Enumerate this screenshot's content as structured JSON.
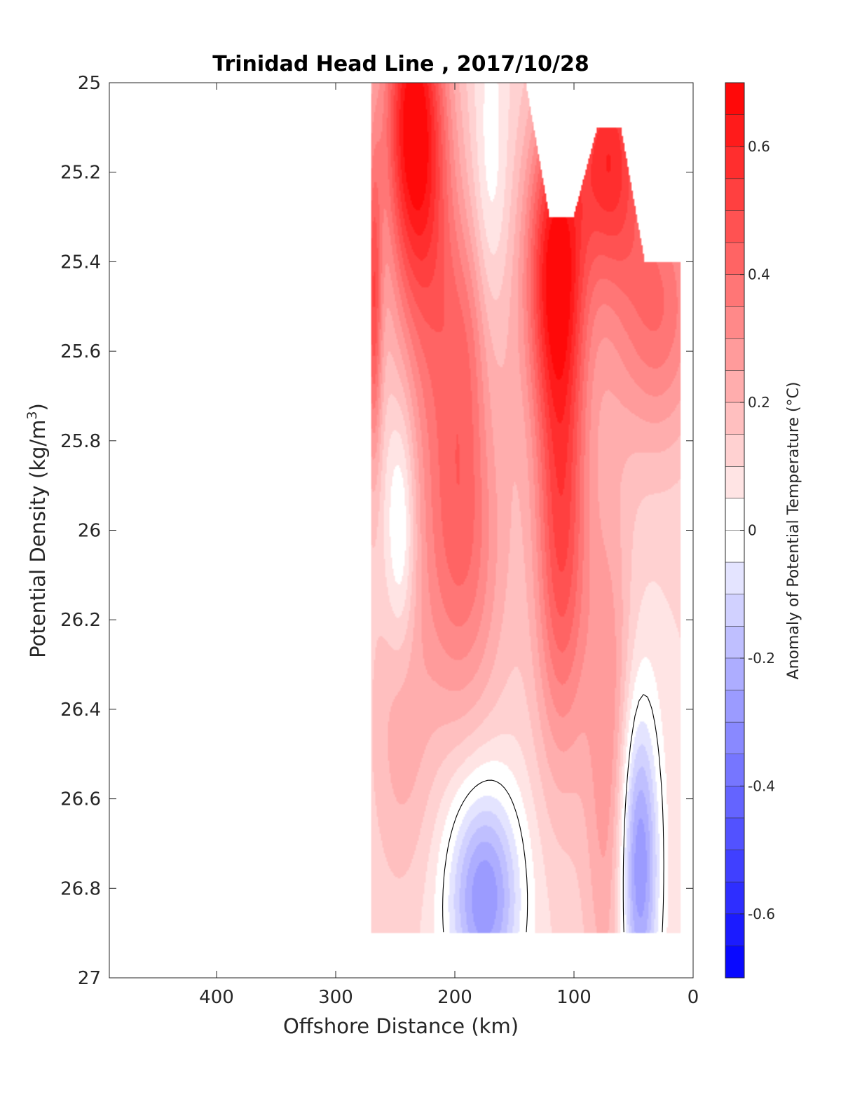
{
  "chart_data": {
    "type": "heatmap",
    "subtype": "filled-contour section",
    "title": "Trinidad Head Line , 2017/10/28",
    "xlabel": "Offshore Distance (km)",
    "ylabel": "Potential Density (kg/m^3)",
    "ylabel_parts": {
      "main": "Potential Density (kg/m",
      "sup": "3",
      "tail": ")"
    },
    "colorbar_label": "Anomaly of Potential Temperature (°C)",
    "x_axis": {
      "reversed": true,
      "min": 0,
      "max": 490,
      "ticks": [
        400,
        300,
        200,
        100,
        0
      ],
      "tick_labels": [
        "400",
        "300",
        "200",
        "100",
        "0"
      ]
    },
    "y_axis": {
      "reversed": true,
      "min": 25,
      "max": 27,
      "ticks": [
        25,
        25.2,
        25.4,
        25.6,
        25.8,
        26,
        26.2,
        26.4,
        26.6,
        26.8,
        27
      ],
      "tick_labels": [
        "25",
        "25.2",
        "25.4",
        "25.6",
        "25.8",
        "26",
        "26.2",
        "26.4",
        "26.6",
        "26.8",
        "27"
      ]
    },
    "colorbar": {
      "min": -0.7,
      "max": 0.7,
      "step": 0.05,
      "ticks": [
        0.6,
        0.4,
        0.2,
        0,
        -0.2,
        -0.4,
        -0.6
      ],
      "tick_labels": [
        "0.6",
        "0.4",
        "0.2",
        "0",
        "-0.2",
        "-0.4",
        "-0.6"
      ],
      "colormap": "blue-white-red",
      "neg_color": "#0000ff",
      "zero_color": "#ffffff",
      "pos_color": "#ff0000"
    },
    "zero_contour": true,
    "grid": false,
    "data_x_km": [
      270,
      260,
      250,
      240,
      230,
      220,
      210,
      200,
      190,
      180,
      170,
      160,
      150,
      140,
      130,
      120,
      110,
      100,
      90,
      80,
      70,
      60,
      50,
      40,
      30,
      20,
      10
    ],
    "data_y_density": [
      25.0,
      25.1,
      25.2,
      25.3,
      25.4,
      25.5,
      25.6,
      25.7,
      25.8,
      25.9,
      26.0,
      26.1,
      26.2,
      26.3,
      26.4,
      26.5,
      26.6,
      26.7,
      26.8,
      26.9
    ],
    "surface_density_limit": [
      {
        "x": 270,
        "y": 25.0
      },
      {
        "x": 140,
        "y": 25.0
      },
      {
        "x": 120,
        "y": 25.3
      },
      {
        "x": 100,
        "y": 25.3
      },
      {
        "x": 80,
        "y": 25.1
      },
      {
        "x": 60,
        "y": 25.1
      },
      {
        "x": 40,
        "y": 25.4
      },
      {
        "x": 10,
        "y": 25.4
      }
    ],
    "bottom_density_limit": 26.9,
    "anomaly_features": [
      {
        "x": 235,
        "y": 25.05,
        "value": 0.58,
        "sx": 18,
        "sy": 0.25
      },
      {
        "x": 268,
        "y": 25.5,
        "value": 0.45,
        "sx": 5,
        "sy": 0.25
      },
      {
        "x": 225,
        "y": 25.35,
        "value": 0.35,
        "sx": 22,
        "sy": 0.3
      },
      {
        "x": 195,
        "y": 26.0,
        "value": 0.42,
        "sx": 26,
        "sy": 0.3
      },
      {
        "x": 185,
        "y": 25.55,
        "value": 0.25,
        "sx": 22,
        "sy": 0.2
      },
      {
        "x": 115,
        "y": 25.4,
        "value": 0.62,
        "sx": 18,
        "sy": 0.25
      },
      {
        "x": 110,
        "y": 26.0,
        "value": 0.5,
        "sx": 16,
        "sy": 0.35
      },
      {
        "x": 70,
        "y": 25.15,
        "value": 0.55,
        "sx": 20,
        "sy": 0.2
      },
      {
        "x": 30,
        "y": 25.5,
        "value": 0.4,
        "sx": 28,
        "sy": 0.22
      },
      {
        "x": 70,
        "y": 26.5,
        "value": 0.3,
        "sx": 14,
        "sy": 0.45
      },
      {
        "x": 245,
        "y": 26.45,
        "value": 0.22,
        "sx": 18,
        "sy": 0.25
      },
      {
        "x": 170,
        "y": 25.35,
        "value": -0.12,
        "sx": 10,
        "sy": 0.35
      },
      {
        "x": 245,
        "y": 26.0,
        "value": -0.18,
        "sx": 9,
        "sy": 0.2
      },
      {
        "x": 175,
        "y": 26.82,
        "value": -0.4,
        "sx": 22,
        "sy": 0.18
      },
      {
        "x": 45,
        "y": 26.75,
        "value": -0.42,
        "sx": 12,
        "sy": 0.25
      }
    ]
  }
}
